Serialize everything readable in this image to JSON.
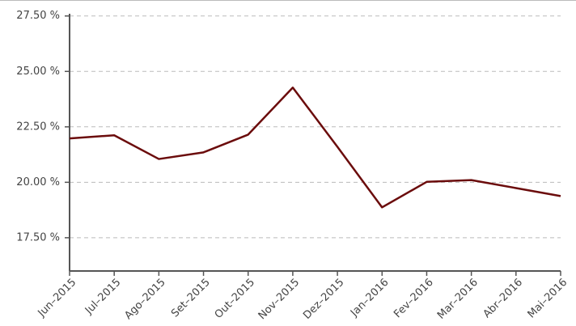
{
  "chart_data": {
    "type": "line",
    "categories": [
      "Jun–2015",
      "Jul–2015",
      "Ago–2015",
      "Set–2015",
      "Out–2015",
      "Nov–2015",
      "Dez–2015",
      "Jan–2016",
      "Fev–2016",
      "Mar–2016",
      "Abr–2016",
      "Mai–2016"
    ],
    "series": [
      {
        "color": "#6b0c0c",
        "values": [
          21.98,
          22.12,
          21.05,
          21.35,
          22.15,
          24.27,
          21.6,
          18.87,
          20.02,
          20.1,
          19.74,
          19.38
        ]
      }
    ],
    "ylim": [
      16,
      27.6
    ],
    "yticks": [
      {
        "value": 17.5,
        "label": "17.50 %"
      },
      {
        "value": 20,
        "label": "20.00 %"
      },
      {
        "value": 22.5,
        "label": "22.50 %"
      },
      {
        "value": 25,
        "label": "25.00 %"
      },
      {
        "value": 27.5,
        "label": "27.50 %"
      }
    ],
    "grid": true
  }
}
